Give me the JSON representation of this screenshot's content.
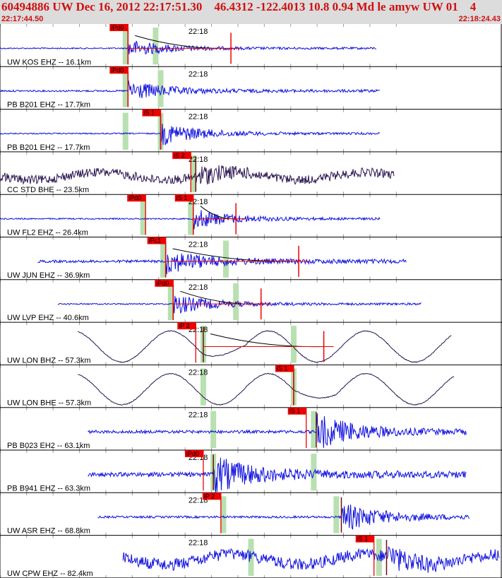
{
  "header": {
    "title": "60494886 UW Dec 16, 2012 22:17:51.30    46.4312 -122.4013 10.8 0.94 Md le amyw UW 01    4",
    "start_time": "22:17:44.50",
    "end_time": "22:18:24.43"
  },
  "colors": {
    "header_bg": "#dcdcdc",
    "header_text": "#d01010",
    "trace_blue": "#1010e0",
    "trace_dark": "#2a1450",
    "pick_box": "#ee0000",
    "pick_bar": "#b8e0b0",
    "grid": "#9a9a9a"
  },
  "chart_data": {
    "type": "seismogram",
    "time_axis": {
      "start": "22:17:44.50",
      "end": "22:18:24.43",
      "minute_label": "22:18"
    },
    "traces": [
      {
        "label": "UW KOS EHZ -- 16.1km",
        "color": "trace_blue",
        "style": "event",
        "start": 0.0,
        "end": 0.75,
        "onset": 0.255,
        "amp": 12,
        "coda_amp": 3,
        "picks": [
          {
            "label": "iPd0",
            "t": 0.255
          }
        ],
        "bars": [
          0.25,
          0.31
        ],
        "marker": 0.46,
        "curve": true,
        "end_mark": true
      },
      {
        "label": "PB B201 EHZ -- 17.7km",
        "color": "trace_blue",
        "style": "event",
        "start": 0.0,
        "end": 0.757,
        "onset": 0.255,
        "amp": 14,
        "coda_amp": 4,
        "picks": [
          {
            "label": "iPd0",
            "t": 0.255
          }
        ],
        "bars": [
          0.25,
          0.32
        ]
      },
      {
        "label": "PB B201 EH2 -- 17.7km",
        "color": "trace_blue",
        "style": "event",
        "start": 0.0,
        "end": 0.757,
        "onset": 0.32,
        "amp": 16,
        "coda_amp": 3,
        "picks": [
          {
            "label": "iS 1",
            "t": 0.32
          }
        ],
        "bars": [
          0.25,
          0.32
        ]
      },
      {
        "label": "CC STD BHE -- 23.5km",
        "color": "trace_dark",
        "style": "noisy",
        "start": 0.0,
        "end": 0.785,
        "onset": 0.39,
        "amp": 16,
        "coda_amp": 9,
        "picks": [
          {
            "label": "iS 2",
            "t": 0.38
          }
        ],
        "bars": [
          0.385
        ]
      },
      {
        "label": "UW FL2 EHZ -- 26.4km",
        "color": "trace_blue",
        "style": "event",
        "start": 0.0,
        "end": 0.757,
        "onset": 0.385,
        "amp": 14,
        "coda_amp": 3,
        "picks": [
          {
            "label": "iPd0",
            "t": 0.29
          },
          {
            "label": "iS 1",
            "t": 0.385
          }
        ],
        "bars": [
          0.285,
          0.38
        ],
        "marker": 0.47,
        "curve": true
      },
      {
        "label": "UW JUN EHZ -- 36.9km",
        "color": "trace_blue",
        "style": "event",
        "start": 0.075,
        "end": 0.81,
        "onset": 0.33,
        "amp": 16,
        "coda_amp": 6,
        "picks": [
          {
            "label": "iPc1",
            "t": 0.33
          }
        ],
        "bars": [
          0.325,
          0.45
        ],
        "marker": 0.595,
        "curve": true
      },
      {
        "label": "UW LVP EHZ -- 40.6km",
        "color": "trace_blue",
        "style": "event",
        "start": 0.115,
        "end": 0.84,
        "onset": 0.345,
        "amp": 14,
        "coda_amp": 3,
        "picks": [
          {
            "label": "iPd0",
            "t": 0.345
          }
        ],
        "bars": [
          0.34,
          0.47
        ],
        "marker": 0.52,
        "curve": true
      },
      {
        "label": "UW LON BHZ -- 57.3km",
        "color": "trace_dark",
        "style": "wave",
        "start": 0.155,
        "end": 0.9,
        "onset": 0.405,
        "amp": 22,
        "coda_amp": 0,
        "picks": [
          {
            "label": "iP 2",
            "t": 0.39
          }
        ],
        "bars": [
          0.405,
          0.585
        ],
        "marker": 0.645,
        "curve": true
      },
      {
        "label": "UW LON BHE -- 57.3km",
        "color": "trace_dark",
        "style": "wave",
        "start": 0.155,
        "end": 0.905,
        "onset": 0.585,
        "amp": 22,
        "coda_amp": 0,
        "picks": [
          {
            "label": "iS 1",
            "t": 0.585
          }
        ],
        "bars": [
          0.405,
          0.585
        ]
      },
      {
        "label": "PB B023 EH2 -- 63.1km",
        "color": "trace_blue",
        "style": "event",
        "start": 0.175,
        "end": 0.93,
        "onset": 0.63,
        "amp": 24,
        "coda_amp": 7,
        "picks": [
          {
            "label": "iS 1",
            "t": 0.61
          }
        ],
        "bars": [
          0.425,
          0.625
        ]
      },
      {
        "label": "PB B941 EHZ -- 63.3km",
        "color": "trace_blue",
        "style": "event",
        "start": 0.175,
        "end": 0.93,
        "onset": 0.425,
        "amp": 24,
        "coda_amp": 10,
        "picks": [
          {
            "label": "iPd0",
            "t": 0.405
          }
        ],
        "bars": [
          0.425,
          0.625
        ]
      },
      {
        "label": "UW ASR EHZ -- 68.8km",
        "color": "trace_blue",
        "style": "event",
        "start": 0.195,
        "end": 0.935,
        "onset": 0.68,
        "amp": 20,
        "coda_amp": 5,
        "picks": [
          {
            "label": "iP 2",
            "t": 0.44
          }
        ],
        "bars": [
          0.445,
          0.67
        ]
      },
      {
        "label": "UW CPW EHZ -- 82.4km",
        "color": "trace_blue",
        "style": "noisy",
        "start": 0.245,
        "end": 0.995,
        "onset": 0.77,
        "amp": 18,
        "coda_amp": 12,
        "picks": [
          {
            "label": "iS 1",
            "t": 0.745
          }
        ],
        "bars": [
          0.5,
          0.755
        ]
      }
    ],
    "minute_tick": 0.395,
    "tick_count": 19
  }
}
